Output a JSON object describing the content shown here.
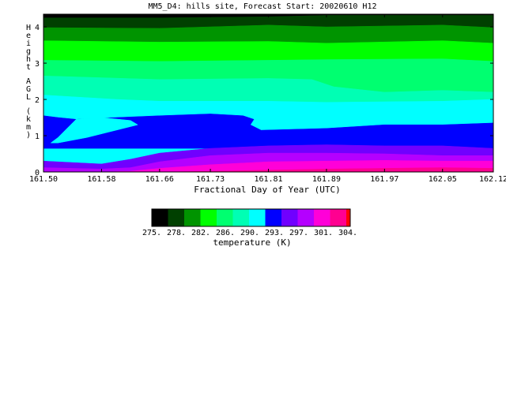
{
  "chart_data": {
    "type": "contour",
    "title": "MM5_D4: hills site,  Forecast Start: 20020610 H12",
    "xlabel": "Fractional Day of Year (UTC)",
    "ylabel": "Height AGL (km)",
    "xlim": [
      161.5,
      162.12
    ],
    "ylim": [
      0,
      4.35
    ],
    "x_ticks": [
      "161.50",
      "161.58",
      "161.66",
      "161.73",
      "161.81",
      "161.89",
      "161.97",
      "162.05",
      "162.12"
    ],
    "x_tick_values": [
      161.5,
      161.58,
      161.66,
      161.73,
      161.81,
      161.89,
      161.97,
      162.05,
      162.12
    ],
    "y_ticks": [
      "0",
      "1",
      "2",
      "3",
      "4"
    ],
    "y_tick_values": [
      0,
      1,
      2,
      3,
      4
    ],
    "bands": [
      {
        "color": "#000000",
        "top": [
          [
            161.5,
            4.35
          ],
          [
            162.12,
            4.35
          ]
        ]
      },
      {
        "color": "#004000",
        "top": [
          [
            161.5,
            4.25
          ],
          [
            161.66,
            4.25
          ],
          [
            161.81,
            4.28
          ],
          [
            161.89,
            4.32
          ],
          [
            162.12,
            4.32
          ]
        ]
      },
      {
        "color": "#009400",
        "top": [
          [
            161.5,
            3.98
          ],
          [
            161.66,
            3.96
          ],
          [
            161.81,
            4.05
          ],
          [
            161.89,
            4.0
          ],
          [
            162.05,
            4.05
          ],
          [
            162.12,
            3.98
          ]
        ]
      },
      {
        "color": "#00ff00",
        "top": [
          [
            161.5,
            3.62
          ],
          [
            161.66,
            3.58
          ],
          [
            161.81,
            3.6
          ],
          [
            161.89,
            3.55
          ],
          [
            162.05,
            3.62
          ],
          [
            162.12,
            3.55
          ]
        ]
      },
      {
        "color": "#00ff70",
        "top": [
          [
            161.5,
            3.08
          ],
          [
            161.66,
            3.05
          ],
          [
            161.81,
            3.08
          ],
          [
            161.89,
            3.1
          ],
          [
            162.05,
            3.12
          ],
          [
            162.12,
            3.05
          ]
        ]
      },
      {
        "color": "#00ffb4",
        "top": [
          [
            161.5,
            2.65
          ],
          [
            161.66,
            2.55
          ],
          [
            161.81,
            2.58
          ],
          [
            161.87,
            2.55
          ],
          [
            161.9,
            2.35
          ],
          [
            161.97,
            2.2
          ],
          [
            162.05,
            2.25
          ],
          [
            162.12,
            2.2
          ]
        ]
      },
      {
        "color": "#00ffff",
        "top": [
          [
            161.5,
            2.12
          ],
          [
            161.6,
            2.0
          ],
          [
            161.66,
            1.95
          ],
          [
            161.81,
            1.95
          ],
          [
            161.89,
            1.92
          ],
          [
            162.05,
            1.95
          ],
          [
            162.12,
            2.0
          ]
        ]
      },
      {
        "color": "#0000ff",
        "top": [
          [
            161.5,
            1.55
          ],
          [
            161.52,
            1.5
          ],
          [
            161.545,
            1.45
          ],
          [
            161.595,
            1.48
          ],
          [
            161.63,
            1.3
          ],
          [
            161.58,
            1.05
          ],
          [
            161.52,
            0.75
          ],
          [
            161.5,
            0.75
          ]
        ]
      },
      {
        "color": "#0000ff",
        "top": [
          [
            161.545,
            1.45
          ],
          [
            161.6,
            1.5
          ],
          [
            161.66,
            1.55
          ],
          [
            161.73,
            1.6
          ],
          [
            161.775,
            1.55
          ],
          [
            161.79,
            1.45
          ],
          [
            161.785,
            1.3
          ],
          [
            161.8,
            1.15
          ],
          [
            161.89,
            1.2
          ],
          [
            161.97,
            1.3
          ],
          [
            162.05,
            1.3
          ],
          [
            162.12,
            1.35
          ],
          [
            162.12,
            0.65
          ],
          [
            161.5,
            0.65
          ],
          [
            161.5,
            0.75
          ],
          [
            161.52,
            0.75
          ],
          [
            161.58,
            1.05
          ],
          [
            161.63,
            1.3
          ],
          [
            161.595,
            1.48
          ]
        ]
      },
      {
        "color": "#00ffff",
        "top": [
          [
            161.545,
            1.45
          ],
          [
            161.58,
            1.5
          ],
          [
            161.62,
            1.42
          ],
          [
            161.63,
            1.3
          ],
          [
            161.59,
            1.1
          ],
          [
            161.56,
            0.95
          ],
          [
            161.52,
            0.8
          ],
          [
            161.51,
            0.8
          ],
          [
            161.52,
            0.95
          ],
          [
            161.53,
            1.15
          ],
          [
            161.54,
            1.35
          ]
        ]
      },
      {
        "color": "#7000ff",
        "top": [
          [
            161.5,
            0.3
          ],
          [
            161.58,
            0.22
          ],
          [
            161.62,
            0.35
          ],
          [
            161.66,
            0.52
          ],
          [
            161.73,
            0.65
          ],
          [
            161.81,
            0.72
          ],
          [
            161.89,
            0.75
          ],
          [
            161.97,
            0.72
          ],
          [
            162.05,
            0.72
          ],
          [
            162.12,
            0.65
          ]
        ]
      },
      {
        "color": "#b400ff",
        "top": [
          [
            161.5,
            0.12
          ],
          [
            161.58,
            0.08
          ],
          [
            161.62,
            0.12
          ],
          [
            161.66,
            0.28
          ],
          [
            161.73,
            0.45
          ],
          [
            161.81,
            0.52
          ],
          [
            161.89,
            0.52
          ],
          [
            161.97,
            0.5
          ],
          [
            162.05,
            0.45
          ],
          [
            162.12,
            0.45
          ]
        ]
      },
      {
        "color": "#ff00d8",
        "top": [
          [
            161.58,
            0.0
          ],
          [
            161.62,
            0.02
          ],
          [
            161.66,
            0.1
          ],
          [
            161.73,
            0.2
          ],
          [
            161.81,
            0.28
          ],
          [
            161.89,
            0.3
          ],
          [
            161.97,
            0.32
          ],
          [
            162.05,
            0.3
          ],
          [
            162.12,
            0.3
          ]
        ]
      },
      {
        "color": "#ff0090",
        "top": [
          [
            161.66,
            0.0
          ],
          [
            161.73,
            0.02
          ],
          [
            161.81,
            0.05
          ],
          [
            161.89,
            0.08
          ],
          [
            161.97,
            0.1
          ],
          [
            162.05,
            0.12
          ],
          [
            162.12,
            0.1
          ]
        ]
      }
    ],
    "legend": {
      "label": "temperature (K)",
      "colors": [
        "#000000",
        "#004000",
        "#009400",
        "#00ff00",
        "#00ff70",
        "#00ffb4",
        "#00ffff",
        "#0000ff",
        "#7000ff",
        "#b400ff",
        "#ff00d8",
        "#ff0090",
        "#ff0000"
      ],
      "tick_labels": [
        "275.",
        "278.",
        "282.",
        "286.",
        "290.",
        "293.",
        "297.",
        "301.",
        "304."
      ]
    }
  }
}
